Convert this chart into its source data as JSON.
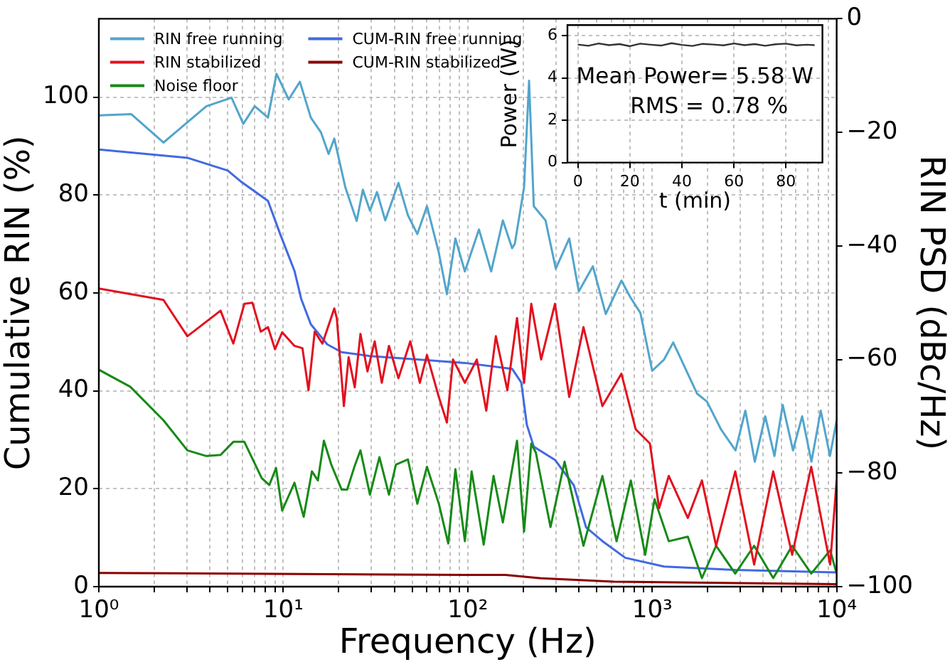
{
  "chart_data": [
    {
      "type": "line",
      "xlabel": "Frequency (Hz)",
      "ylabel": "Cumulative RIN (%)",
      "y2label": "RIN PSD (dBc/Hz)",
      "log": "x",
      "grid": true,
      "legend": "top left",
      "marker": "none",
      "line_style": "solid",
      "xlim": [
        1,
        10000
      ],
      "xticks": [
        {
          "value": 1,
          "label": "10⁰"
        },
        {
          "value": 2,
          "label": null
        },
        {
          "value": 3,
          "label": null
        },
        {
          "value": 4,
          "label": null
        },
        {
          "value": 5,
          "label": null
        },
        {
          "value": 6,
          "label": null
        },
        {
          "value": 7,
          "label": null
        },
        {
          "value": 8,
          "label": null
        },
        {
          "value": 9,
          "label": null
        },
        {
          "value": 10,
          "label": "10¹"
        },
        {
          "value": 20,
          "label": null
        },
        {
          "value": 30,
          "label": null
        },
        {
          "value": 40,
          "label": null
        },
        {
          "value": 50,
          "label": null
        },
        {
          "value": 60,
          "label": null
        },
        {
          "value": 70,
          "label": null
        },
        {
          "value": 80,
          "label": null
        },
        {
          "value": 90,
          "label": null
        },
        {
          "value": 100,
          "label": "10²"
        },
        {
          "value": 200,
          "label": null
        },
        {
          "value": 300,
          "label": null
        },
        {
          "value": 400,
          "label": null
        },
        {
          "value": 500,
          "label": null
        },
        {
          "value": 600,
          "label": null
        },
        {
          "value": 700,
          "label": null
        },
        {
          "value": 800,
          "label": null
        },
        {
          "value": 900,
          "label": null
        },
        {
          "value": 1000,
          "label": "10³"
        },
        {
          "value": 2000,
          "label": null
        },
        {
          "value": 3000,
          "label": null
        },
        {
          "value": 4000,
          "label": null
        },
        {
          "value": 5000,
          "label": null
        },
        {
          "value": 6000,
          "label": null
        },
        {
          "value": 7000,
          "label": null
        },
        {
          "value": 8000,
          "label": null
        },
        {
          "value": 9000,
          "label": null
        },
        {
          "value": 10000,
          "label": "10⁴"
        }
      ],
      "ylim": [
        0,
        116
      ],
      "yticks": [
        0,
        20,
        40,
        60,
        80,
        100
      ],
      "y2lim": [
        -100,
        0
      ],
      "y2ticks": [
        {
          "value": -100,
          "label": "−100"
        },
        {
          "value": -80,
          "label": "−80"
        },
        {
          "value": -60,
          "label": "−60"
        },
        {
          "value": -40,
          "label": "−40"
        },
        {
          "value": -20,
          "label": "−20"
        },
        0
      ],
      "series": [
        {
          "name": "RIN free running",
          "color": "#52a5cc",
          "axis": "y2",
          "x": [
            1,
            1.5,
            2.24,
            3.83,
            5.24,
            6.07,
            7.0,
            8.26,
            9.19,
            10.7,
            12.3,
            14.1,
            16.0,
            17.6,
            18.9,
            21.7,
            25.0,
            27.0,
            29.5,
            32.2,
            35.7,
            42.1,
            47.4,
            53.3,
            60.1,
            69.7,
            77.1,
            85.7,
            96.5,
            115,
            134,
            155,
            174,
            180,
            202,
            215,
            228,
            264,
            300,
            355,
            400,
            477,
            560,
            681,
            760,
            863,
            1000,
            1160,
            1300,
            1560,
            1750,
            1980,
            2360,
            2830,
            3200,
            3600,
            4100,
            4600,
            5100,
            5800,
            6500,
            7300,
            8200,
            9200,
            10000
          ],
          "values": [
            -17.0,
            -16.8,
            -21.8,
            -15.4,
            -13.9,
            -18.5,
            -15.4,
            -17.4,
            -9.7,
            -14.2,
            -11.1,
            -17.4,
            -20.0,
            -23.8,
            -21.1,
            -29.7,
            -35.6,
            -30.1,
            -33.8,
            -30.5,
            -35.5,
            -28.9,
            -34.6,
            -37.9,
            -33.0,
            -41.2,
            -48.5,
            -38.7,
            -44.5,
            -37.1,
            -44.5,
            -35.5,
            -40.4,
            -39.6,
            -29.7,
            -10.9,
            -33.0,
            -35.5,
            -44,
            -38.7,
            -48,
            -43.6,
            -52,
            -46.1,
            -49,
            -51.8,
            -62,
            -60.0,
            -57,
            -62.5,
            -66,
            -67.4,
            -72.3,
            -76,
            -69,
            -78,
            -70,
            -77,
            -68,
            -76,
            -70,
            -78,
            -69,
            -77,
            -70.7
          ]
        },
        {
          "name": "RIN stabilized",
          "color": "#e3101e",
          "axis": "y2",
          "x": [
            1,
            2.24,
            3.02,
            4.57,
            5.36,
            6.15,
            6.8,
            7.55,
            8.26,
            9.02,
            9.86,
            11.5,
            12.7,
            13.7,
            14.8,
            16.3,
            18.9,
            19.5,
            21.3,
            22.6,
            24.4,
            26.2,
            28.6,
            31.3,
            34.2,
            37.4,
            42.1,
            48.8,
            55.0,
            60.1,
            69.7,
            77.1,
            83.2,
            96.5,
            112,
            126,
            142,
            164,
            185,
            202,
            221,
            250,
            297,
            355,
            424,
            537,
            681,
            814,
            972,
            1090,
            1230,
            1560,
            1860,
            2220,
            2820,
            3570,
            4530,
            5740,
            7280,
            9220,
            10000
          ],
          "values": [
            -47.5,
            -49.5,
            -55.9,
            -51.4,
            -57.2,
            -50.2,
            -50.0,
            -55.1,
            -54.3,
            -58.2,
            -55.2,
            -57.6,
            -58.0,
            -65.4,
            -55.1,
            -57.2,
            -51.0,
            -52.7,
            -68.2,
            -59.6,
            -64.9,
            -55.5,
            -62.1,
            -56.8,
            -64.1,
            -57.6,
            -63.3,
            -56.8,
            -64.1,
            -59.2,
            -66.6,
            -71.1,
            -60.0,
            -64.1,
            -60.0,
            -69.0,
            -55.9,
            -65.4,
            -52.7,
            -64.1,
            -50.2,
            -60.0,
            -50.2,
            -66.6,
            -54.3,
            -68.2,
            -62.5,
            -72.3,
            -74.8,
            -86.2,
            -80.5,
            -87.9,
            -81.3,
            -92.8,
            -79.7,
            -96.1,
            -79.7,
            -94.4,
            -78.9,
            -96.1,
            -81.3
          ]
        },
        {
          "name": "Noise floor",
          "color": "#168a16",
          "axis": "y2",
          "x": [
            1,
            1.48,
            2.24,
            3.02,
            3.83,
            4.57,
            5.36,
            6.15,
            7.64,
            8.4,
            9.14,
            9.86,
            11.5,
            12.9,
            14.3,
            15.4,
            16.6,
            18.2,
            20.7,
            22.2,
            24.4,
            26.2,
            29.5,
            33.2,
            37.4,
            40.8,
            47.4,
            53.3,
            60.1,
            69.7,
            78.4,
            85.7,
            96.5,
            105,
            122,
            138,
            155,
            185,
            202,
            221,
            234,
            281,
            335,
            424,
            537,
            641,
            766,
            916,
            1030,
            1230,
            1560,
            1860,
            2220,
            2820,
            3570,
            4530,
            5740,
            7280,
            9220,
            10000
          ],
          "values": [
            -61.8,
            -64.8,
            -70.7,
            -76.0,
            -77.0,
            -76.8,
            -74.5,
            -74.5,
            -80.9,
            -82.1,
            -79.1,
            -86.6,
            -81.7,
            -87.7,
            -79.7,
            -81.3,
            -74.3,
            -78.5,
            -82.9,
            -82.9,
            -78.7,
            -76.0,
            -83.8,
            -77.2,
            -83.8,
            -78.5,
            -77.6,
            -85.4,
            -78.9,
            -85.4,
            -92.4,
            -79.3,
            -92.0,
            -79.7,
            -92.6,
            -80.5,
            -88.7,
            -74.3,
            -90.3,
            -74.8,
            -76.4,
            -89.5,
            -78.0,
            -92.8,
            -80.5,
            -92.0,
            -81.3,
            -94.4,
            -84.6,
            -92.0,
            -91.2,
            -98.5,
            -92.8,
            -97.7,
            -92.8,
            -98.5,
            -92.8,
            -97.7,
            -93.6,
            -97.7
          ]
        },
        {
          "name": "CUM-RIN free running",
          "color": "#4169e1",
          "x": [
            1,
            3.02,
            5.0,
            5.96,
            8.26,
            9.6,
            11.5,
            12.5,
            14.1,
            17.3,
            20.7,
            29.5,
            53.3,
            96.5,
            174,
            195,
            209,
            228,
            297,
            376,
            438,
            537,
            714,
            1160,
            2830,
            10000
          ],
          "values": [
            89.3,
            87.6,
            85.0,
            82.6,
            78.8,
            72.1,
            64.5,
            58.8,
            53.6,
            49.5,
            47.9,
            47.1,
            46.4,
            45.7,
            44.5,
            41.7,
            33.1,
            28.6,
            25.9,
            20.7,
            12.1,
            9.3,
            5.9,
            4.1,
            3.4,
            2.9
          ]
        },
        {
          "name": "CUM-RIN stabilized",
          "color": "#8b0000",
          "x": [
            1,
            96.5,
            160,
            250,
            620,
            10000
          ],
          "values": [
            2.8,
            2.4,
            2.4,
            1.7,
            1.0,
            0.5
          ]
        }
      ]
    },
    {
      "type": "line",
      "xlabel": "t (min)",
      "ylabel": "Power (W)",
      "grid": true,
      "marker": "none",
      "line_style": "solid",
      "xlim": [
        -4,
        94
      ],
      "xticks": [
        0,
        20,
        40,
        60,
        80
      ],
      "ylim": [
        0,
        6.5
      ],
      "yticks": [
        0,
        2,
        4,
        6
      ],
      "annotations": [
        "Mean Power= 5.58 W",
        "RMS = 0.78 %"
      ],
      "series": [
        {
          "color": "#333333",
          "x": [
            0,
            4,
            8,
            12,
            16,
            20,
            24,
            28,
            32,
            36,
            40,
            44,
            48,
            52,
            56,
            60,
            64,
            68,
            72,
            76,
            80,
            84,
            88,
            91
          ],
          "values": [
            5.58,
            5.52,
            5.63,
            5.55,
            5.6,
            5.5,
            5.62,
            5.57,
            5.53,
            5.64,
            5.56,
            5.51,
            5.61,
            5.58,
            5.54,
            5.63,
            5.55,
            5.6,
            5.52,
            5.59,
            5.62,
            5.54,
            5.57,
            5.55
          ]
        }
      ]
    }
  ]
}
